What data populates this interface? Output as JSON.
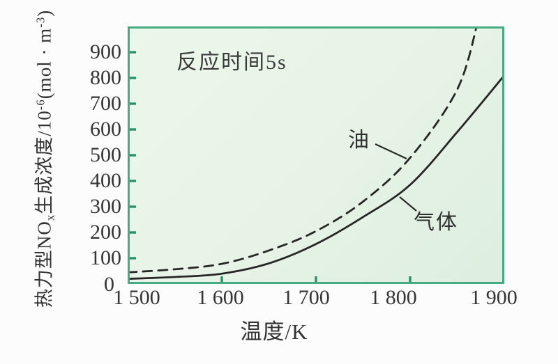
{
  "figure": {
    "page_background": "#fbfcfb",
    "plot_background": "#e6f3e6",
    "border_color": "#46ab81",
    "tick_color": "#2f8f68",
    "curve_color": "#262626",
    "text_color": "#333333"
  },
  "chart_data": {
    "type": "line",
    "title": "",
    "annotation": "反应时间5s",
    "xlabel": "温度/K",
    "ylabel": "热力型NOx生成浓度/10-6(mol · m-3)",
    "ylabel_parts": {
      "main": "热力型NO",
      "sub": "x",
      "mid": "生成浓度/10",
      "sup": "-6",
      "unit_open": "(mol · m",
      "unit_sup": "-3",
      "unit_close": ")"
    },
    "xlim": [
      1500,
      1900
    ],
    "ylim": [
      0,
      1000
    ],
    "grid": false,
    "legend_position": "inline-labels",
    "x_tick_values": [
      1500,
      1600,
      1700,
      1800,
      1900
    ],
    "x_tick_labels": [
      "1 500",
      "1 600",
      "1 700",
      "1 800",
      "1 900"
    ],
    "x_minor_tick_values": [
      1600,
      1700,
      1800
    ],
    "y_tick_values": [
      100,
      200,
      300,
      400,
      500,
      600,
      700,
      800,
      900
    ],
    "y_tick_labels": [
      "100",
      "200",
      "300",
      "400",
      "500",
      "600",
      "700",
      "800",
      "900"
    ],
    "y_origin_label": "0",
    "series": [
      {
        "name": "油",
        "line_style": "dashed",
        "x": [
          1500,
          1550,
          1600,
          1650,
          1700,
          1750,
          1800,
          1850,
          1872
        ],
        "values": [
          45,
          57,
          78,
          130,
          205,
          320,
          490,
          755,
          1020
        ]
      },
      {
        "name": "气体",
        "line_style": "solid",
        "x": [
          1500,
          1550,
          1600,
          1650,
          1700,
          1750,
          1800,
          1850,
          1900
        ],
        "values": [
          20,
          27,
          40,
          80,
          155,
          260,
          385,
          590,
          810
        ]
      }
    ]
  }
}
